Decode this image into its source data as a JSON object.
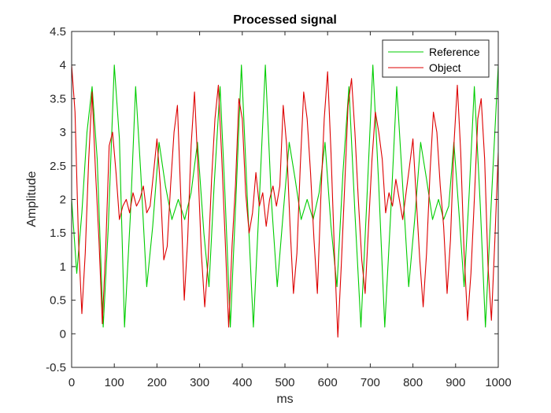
{
  "chart_data": {
    "type": "line",
    "title": "Processed signal",
    "xlabel": "ms",
    "ylabel": "Amplitude",
    "xlim": [
      0,
      1000
    ],
    "ylim": [
      -0.5,
      4.5
    ],
    "xticks": [
      0,
      100,
      200,
      300,
      400,
      500,
      600,
      700,
      800,
      900,
      1000
    ],
    "yticks": [
      -0.5,
      0,
      0.5,
      1,
      1.5,
      2,
      2.5,
      3,
      3.5,
      4,
      4.5
    ],
    "xtick_labels": [
      "0",
      "100",
      "200",
      "300",
      "400",
      "500",
      "600",
      "700",
      "800",
      "900",
      "1000"
    ],
    "ytick_labels": [
      "-0.5",
      "0",
      "0.5",
      "1",
      "1.5",
      "2",
      "2.5",
      "3",
      "3.5",
      "4",
      "4.5"
    ],
    "grid": false,
    "legend_position": "top-right",
    "series": [
      {
        "name": "Reference",
        "color": "#00cc00",
        "x": [
          0,
          12,
          24,
          36,
          48,
          60,
          74,
          86,
          100,
          112,
          124,
          138,
          150,
          162,
          176,
          190,
          205,
          220,
          235,
          250,
          265,
          280,
          295,
          310,
          322,
          334,
          348,
          360,
          372,
          385,
          398,
          412,
          426,
          440,
          454,
          468,
          482,
          496,
          510,
          524,
          538,
          552,
          566,
          580,
          594,
          608,
          622,
          636,
          650,
          664,
          678,
          692,
          706,
          720,
          734,
          748,
          762,
          776,
          790,
          804,
          818,
          832,
          846,
          860,
          872,
          884,
          896,
          908,
          920,
          932,
          944,
          958,
          970,
          984,
          1000
        ],
        "y": [
          2.0,
          0.9,
          1.8,
          3.0,
          3.68,
          2.6,
          0.1,
          1.6,
          4.0,
          2.9,
          0.1,
          1.8,
          3.68,
          2.4,
          0.7,
          1.6,
          2.85,
          2.2,
          1.7,
          2.0,
          1.7,
          2.1,
          2.85,
          1.5,
          0.7,
          2.2,
          3.68,
          2.0,
          0.1,
          2.0,
          4.0,
          2.0,
          0.1,
          2.0,
          4.0,
          2.0,
          0.7,
          1.8,
          2.85,
          2.3,
          1.7,
          2.0,
          1.7,
          2.1,
          2.85,
          1.6,
          0.7,
          2.4,
          3.68,
          1.8,
          0.1,
          2.0,
          4.0,
          2.2,
          0.1,
          1.8,
          3.68,
          2.2,
          0.7,
          1.7,
          2.85,
          2.3,
          1.7,
          2.0,
          1.7,
          1.9,
          2.85,
          1.8,
          0.7,
          2.1,
          3.68,
          1.9,
          0.1,
          2.0,
          4.0
        ]
      },
      {
        "name": "Object",
        "color": "#dd0000",
        "x": [
          0,
          8,
          16,
          24,
          32,
          40,
          48,
          56,
          64,
          72,
          80,
          88,
          96,
          104,
          112,
          120,
          128,
          136,
          144,
          152,
          160,
          168,
          176,
          184,
          192,
          200,
          208,
          216,
          224,
          232,
          240,
          248,
          256,
          264,
          272,
          280,
          288,
          296,
          304,
          312,
          320,
          328,
          336,
          344,
          352,
          360,
          368,
          376,
          384,
          392,
          400,
          408,
          416,
          424,
          432,
          440,
          448,
          456,
          464,
          472,
          480,
          488,
          496,
          504,
          512,
          520,
          528,
          536,
          544,
          552,
          560,
          568,
          576,
          584,
          592,
          600,
          608,
          616,
          624,
          632,
          640,
          648,
          656,
          664,
          672,
          680,
          688,
          696,
          704,
          712,
          720,
          728,
          736,
          744,
          752,
          760,
          768,
          776,
          784,
          792,
          800,
          808,
          816,
          824,
          832,
          840,
          848,
          856,
          864,
          872,
          880,
          888,
          896,
          904,
          912,
          920,
          928,
          936,
          944,
          952,
          960,
          968,
          976,
          984,
          992,
          1000
        ],
        "y": [
          4.0,
          3.3,
          1.4,
          0.3,
          1.2,
          2.6,
          3.6,
          2.4,
          1.4,
          0.15,
          1.3,
          2.8,
          3.0,
          2.4,
          1.7,
          1.9,
          2.0,
          1.8,
          2.1,
          1.9,
          2.0,
          2.2,
          1.8,
          1.9,
          2.4,
          2.9,
          2.2,
          1.1,
          1.3,
          2.2,
          3.0,
          3.4,
          2.0,
          0.5,
          1.4,
          2.8,
          3.6,
          2.5,
          1.2,
          0.4,
          1.1,
          2.3,
          3.2,
          3.7,
          2.6,
          1.4,
          0.1,
          1.3,
          2.2,
          3.5,
          3.2,
          2.1,
          1.5,
          1.8,
          2.4,
          1.9,
          2.1,
          1.6,
          2.0,
          2.2,
          1.9,
          2.2,
          3.4,
          2.8,
          1.6,
          0.6,
          1.2,
          2.5,
          3.6,
          3.2,
          2.4,
          1.4,
          0.6,
          2.0,
          3.2,
          3.9,
          2.7,
          1.2,
          -0.05,
          1.0,
          2.2,
          3.4,
          3.8,
          3.0,
          2.0,
          1.1,
          0.6,
          1.6,
          2.6,
          3.3,
          3.0,
          2.6,
          1.8,
          2.1,
          1.9,
          2.3,
          2.0,
          1.7,
          2.1,
          2.5,
          2.9,
          2.0,
          1.1,
          0.4,
          1.2,
          2.4,
          3.3,
          3.0,
          2.2,
          1.6,
          0.6,
          1.4,
          2.8,
          3.7,
          2.7,
          1.2,
          0.2,
          0.9,
          2.0,
          3.2,
          3.5,
          2.6,
          1.0,
          0.2,
          1.4,
          2.7
        ]
      }
    ]
  }
}
